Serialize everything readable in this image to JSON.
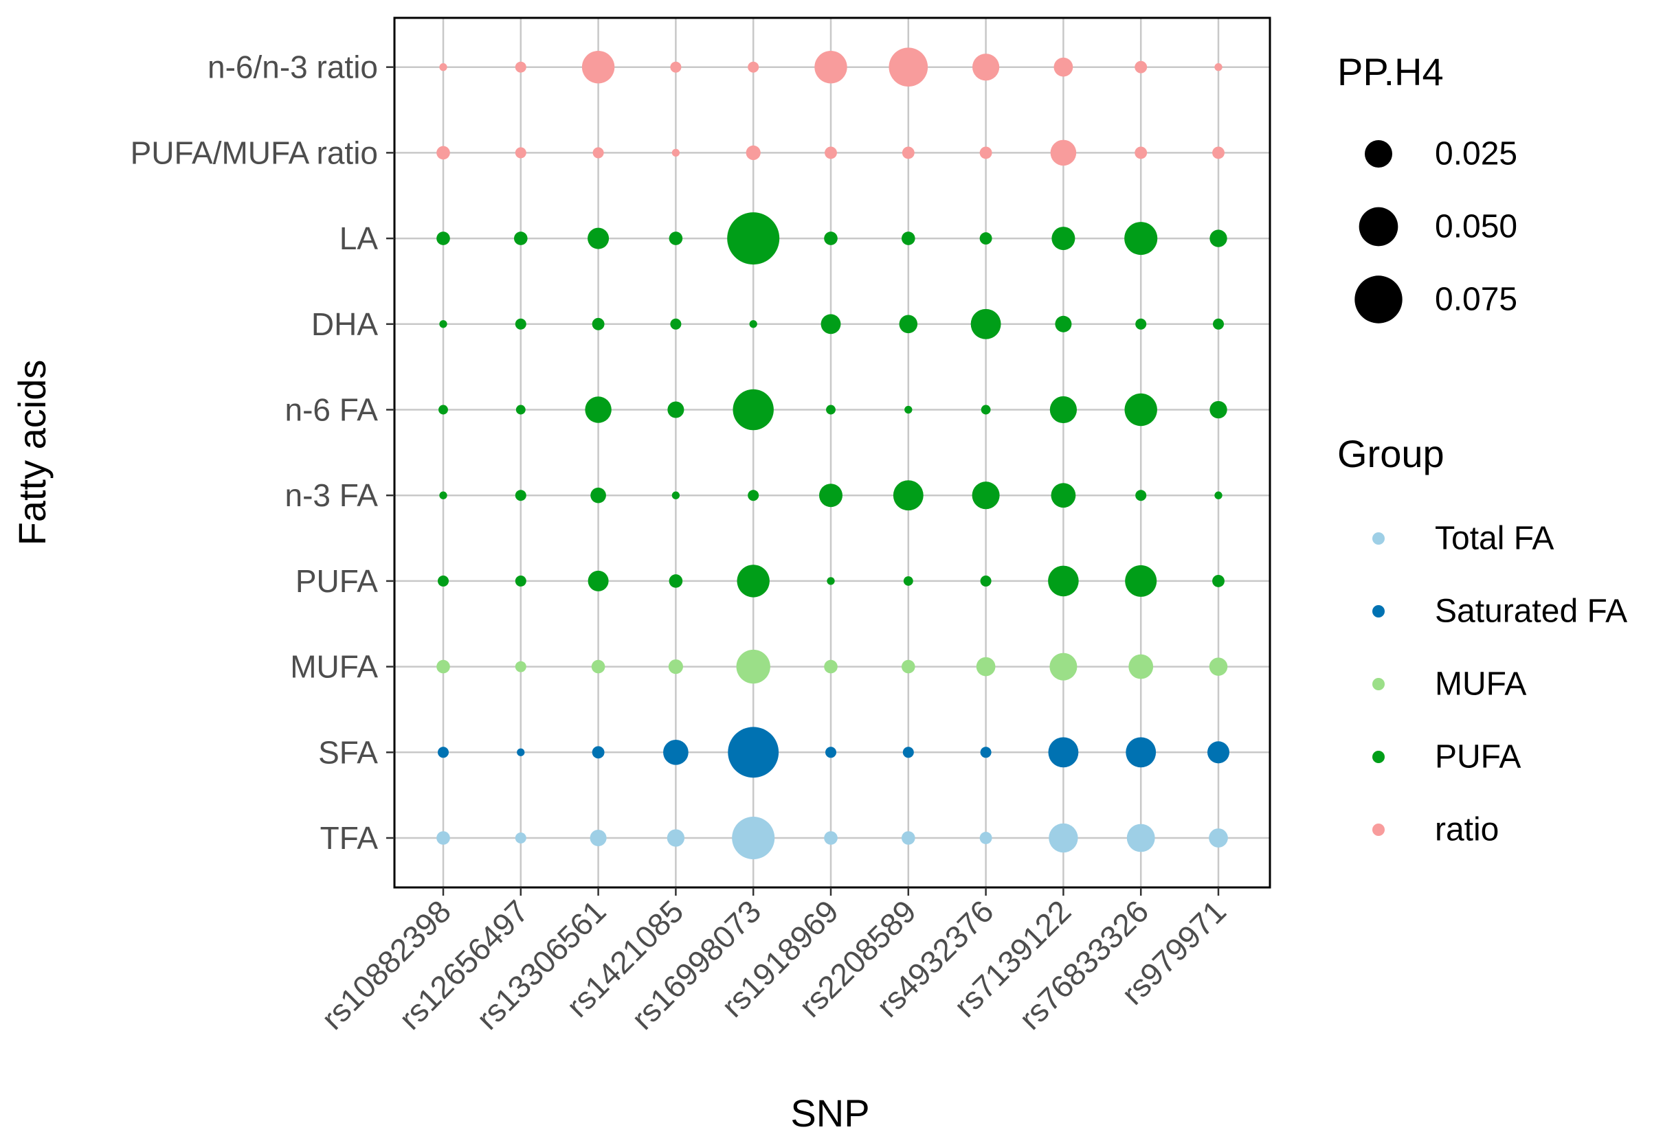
{
  "chart_data": {
    "type": "scatter",
    "subtype": "bubble-grid",
    "xlabel": "SNP",
    "ylabel": "Fatty acids",
    "x_categories": [
      "rs10882398",
      "rs12656497",
      "rs13306561",
      "rs1421085",
      "rs16998073",
      "rs1918969",
      "rs2208589",
      "rs4932376",
      "rs7139122",
      "rs76833326",
      "rs979971"
    ],
    "y_categories": [
      "TFA",
      "SFA",
      "MUFA",
      "PUFA",
      "n-3 FA",
      "n-6 FA",
      "DHA",
      "LA",
      "PUFA/MUFA ratio",
      "n-6/n-3 ratio"
    ],
    "row_group": [
      "Total FA",
      "Saturated FA",
      "MUFA",
      "PUFA",
      "PUFA",
      "PUFA",
      "PUFA",
      "PUFA",
      "ratio",
      "ratio"
    ],
    "values": [
      [
        0.006,
        0.004,
        0.009,
        0.01,
        0.06,
        0.006,
        0.006,
        0.005,
        0.028,
        0.026,
        0.012
      ],
      [
        0.004,
        0.002,
        0.005,
        0.021,
        0.085,
        0.004,
        0.004,
        0.004,
        0.03,
        0.03,
        0.016
      ],
      [
        0.006,
        0.004,
        0.006,
        0.007,
        0.038,
        0.006,
        0.006,
        0.012,
        0.025,
        0.02,
        0.011
      ],
      [
        0.004,
        0.004,
        0.014,
        0.006,
        0.035,
        0.002,
        0.003,
        0.004,
        0.031,
        0.033,
        0.005
      ],
      [
        0.002,
        0.004,
        0.008,
        0.002,
        0.004,
        0.018,
        0.03,
        0.025,
        0.02,
        0.004,
        0.002
      ],
      [
        0.003,
        0.003,
        0.023,
        0.009,
        0.055,
        0.003,
        0.002,
        0.003,
        0.024,
        0.035,
        0.01
      ],
      [
        0.002,
        0.004,
        0.005,
        0.004,
        0.002,
        0.013,
        0.011,
        0.03,
        0.009,
        0.004,
        0.004
      ],
      [
        0.006,
        0.006,
        0.015,
        0.006,
        0.09,
        0.006,
        0.006,
        0.005,
        0.018,
        0.036,
        0.01
      ],
      [
        0.006,
        0.004,
        0.004,
        0.002,
        0.007,
        0.005,
        0.005,
        0.005,
        0.022,
        0.005,
        0.005
      ],
      [
        0.002,
        0.004,
        0.035,
        0.004,
        0.004,
        0.035,
        0.05,
        0.024,
        0.012,
        0.005,
        0.002
      ]
    ],
    "size_legend": {
      "title": "PP.H4",
      "breaks": [
        0.025,
        0.05,
        0.075
      ],
      "labels": [
        "0.025",
        "0.050",
        "0.075"
      ]
    },
    "color_legend": {
      "title": "Group",
      "entries": [
        {
          "label": "Total FA",
          "color": "#9ecfe6"
        },
        {
          "label": "Saturated FA",
          "color": "#0072b2"
        },
        {
          "label": "MUFA",
          "color": "#9bdf88"
        },
        {
          "label": "PUFA",
          "color": "#009e18"
        },
        {
          "label": "ratio",
          "color": "#f89c9c"
        }
      ]
    },
    "grid": true,
    "legend_position": "right"
  }
}
